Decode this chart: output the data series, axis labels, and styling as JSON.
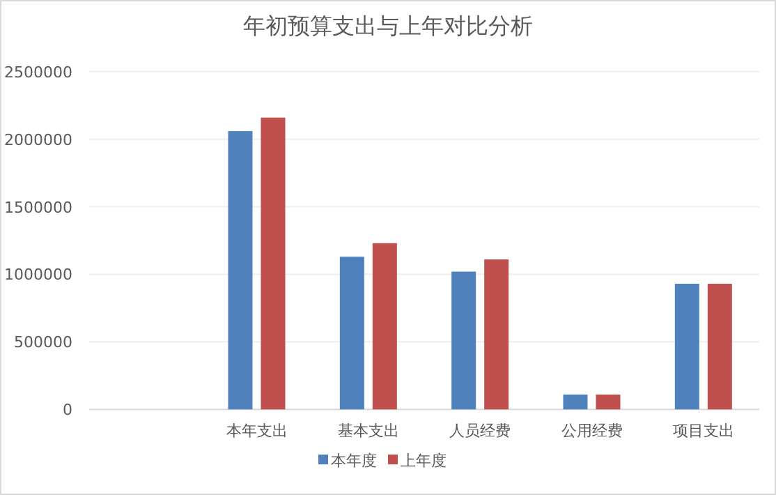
{
  "chart_data": {
    "type": "bar",
    "title": "年初预算支出与上年对比分析",
    "categories": [
      null,
      "本年支出",
      "基本支出",
      "人员经费",
      "公用经费",
      "项目支出"
    ],
    "series": [
      {
        "name": "本年度",
        "color": "#4f81bd",
        "values": [
          null,
          2060000,
          1130000,
          1020000,
          110000,
          930000
        ]
      },
      {
        "name": "上年度",
        "color": "#c0504d",
        "values": [
          null,
          2160000,
          1230000,
          1110000,
          110000,
          930000
        ]
      }
    ],
    "ylim": [
      0,
      2500000
    ],
    "yticks": [
      0,
      500000,
      1000000,
      1500000,
      2000000,
      2500000
    ],
    "grid": "y",
    "legend": "bottom"
  }
}
